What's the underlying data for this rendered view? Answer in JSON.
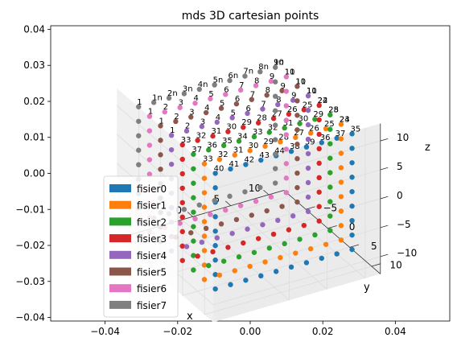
{
  "chart_data": {
    "type": "scatter",
    "title": "mds 3D cartesian points",
    "xlabel": "x",
    "ylabel": "y",
    "zlabel": "z",
    "outer_axes": {
      "x_ticks": [
        "−0.04",
        "−0.02",
        "0.00",
        "0.02",
        "0.04"
      ],
      "y_ticks": [
        "−0.04",
        "−0.03",
        "−0.02",
        "−0.01",
        "0.00",
        "0.01",
        "0.02",
        "0.03",
        "0.04"
      ],
      "xlim": [
        -0.055,
        0.055
      ],
      "ylim": [
        -0.041,
        0.041
      ]
    },
    "axes3d": {
      "x_ticks": [
        "0",
        "5",
        "10"
      ],
      "y_ticks": [
        "−5",
        "0",
        "5",
        "10"
      ],
      "z_ticks": [
        "−10",
        "−5",
        "0",
        "5",
        "10"
      ],
      "xlim": [
        -10,
        12
      ],
      "ylim": [
        -10,
        12
      ],
      "zlim": [
        -13,
        13
      ]
    },
    "legend": {
      "placement": "lower-left"
    },
    "grid": true,
    "series": [
      {
        "name": "fisier0",
        "color": "#1f77b4",
        "y_level": 9,
        "labels": [
          "40",
          "41",
          "42",
          "43",
          "44",
          "38",
          "39",
          "36",
          "37",
          "35"
        ]
      },
      {
        "name": "fisier1",
        "color": "#ff7f0e",
        "y_level": 6.5,
        "labels": [
          "33",
          "32",
          "31",
          "30",
          "29",
          "28",
          "27",
          "26",
          "25",
          "24",
          "23"
        ]
      },
      {
        "name": "fisier2",
        "color": "#2ca02c",
        "y_level": 4,
        "labels": [
          "37",
          "36",
          "35",
          "34",
          "33",
          "32",
          "31",
          "30",
          "29",
          "28",
          "25"
        ]
      },
      {
        "name": "fisier3",
        "color": "#d62728",
        "y_level": 1.5,
        "labels": [
          "33",
          "32",
          "31",
          "30",
          "29",
          "28",
          "27",
          "26",
          "25",
          "24",
          "22"
        ]
      },
      {
        "name": "fisier4",
        "color": "#9467bd",
        "y_level": -1,
        "labels": [
          "1",
          "2",
          "3",
          "4",
          "5",
          "6",
          "7",
          "8",
          "9",
          "10",
          "11"
        ]
      },
      {
        "name": "fisier5",
        "color": "#8c564b",
        "y_level": -3.5,
        "labels": [
          "1",
          "2",
          "3",
          "4",
          "5",
          "6",
          "7",
          "8",
          "9",
          "10",
          "11"
        ]
      },
      {
        "name": "fisier6",
        "color": "#e377c2",
        "y_level": -6,
        "labels": [
          "1",
          "2",
          "3",
          "4",
          "5",
          "6",
          "7",
          "8",
          "9",
          "10",
          "11"
        ]
      },
      {
        "name": "fisier7",
        "color": "#7f7f7f",
        "y_level": -8.5,
        "labels": [
          "1",
          "1n",
          "2n",
          "3n",
          "4n",
          "5n",
          "6n",
          "7n",
          "8n",
          "9n",
          "10"
        ]
      }
    ],
    "point_grid": {
      "x_values": [
        -8,
        -6,
        -4,
        -2,
        0,
        2,
        4,
        6,
        8,
        10
      ],
      "z_values": [
        -10,
        -7.5,
        -5,
        -2.5,
        0,
        2.5,
        5,
        7.5,
        10
      ]
    }
  }
}
